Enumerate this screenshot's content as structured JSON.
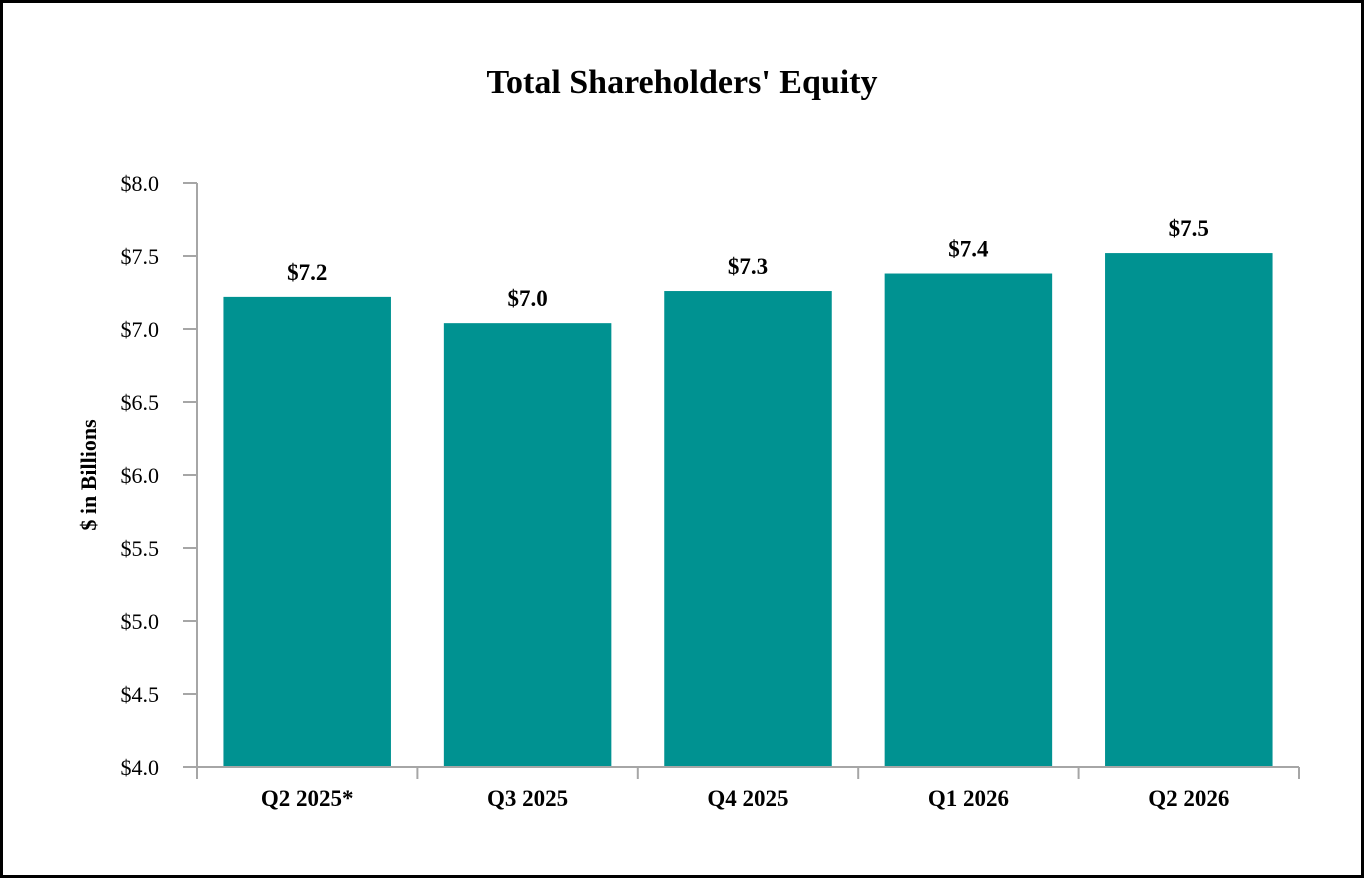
{
  "chart_data": {
    "type": "bar",
    "title": "Total Shareholders' Equity",
    "xlabel": "",
    "ylabel": "$ in Billions",
    "categories": [
      "Q2 2025*",
      "Q3 2025",
      "Q4 2025",
      "Q1 2026",
      "Q2 2026"
    ],
    "values": [
      7.22,
      7.04,
      7.26,
      7.38,
      7.52
    ],
    "data_labels": [
      "$7.2",
      "$7.0",
      "$7.3",
      "$7.4",
      "$7.5"
    ],
    "ylim": [
      4.0,
      8.0
    ],
    "yticks": [
      4.0,
      4.5,
      5.0,
      5.5,
      6.0,
      6.5,
      7.0,
      7.5,
      8.0
    ],
    "ytick_labels": [
      "$4.0",
      "$4.5",
      "$5.0",
      "$5.5",
      "$6.0",
      "$6.5",
      "$7.0",
      "$7.5",
      "$8.0"
    ],
    "grid": false,
    "legend": "none",
    "bar_color": "#009291",
    "axis_color": "#a6a6a6"
  }
}
